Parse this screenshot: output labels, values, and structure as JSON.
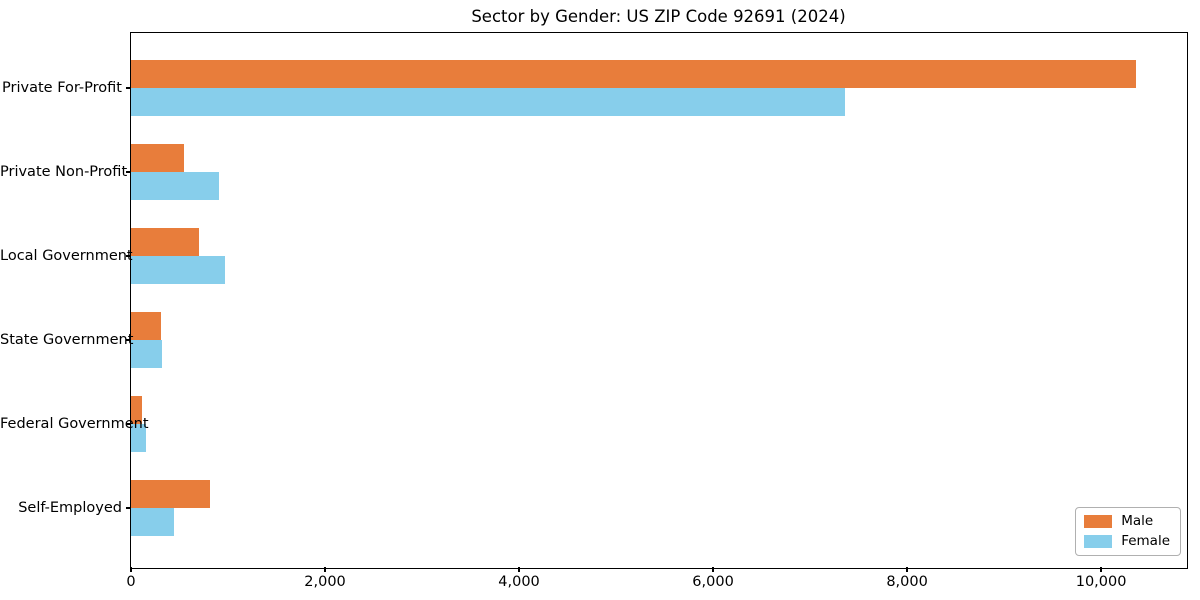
{
  "title": "Sector by Gender: US ZIP Code 92691 (2024)",
  "chart_data": {
    "type": "bar",
    "orientation": "horizontal",
    "title": "Sector by Gender: US ZIP Code 92691 (2024)",
    "categories": [
      "Private For-Profit",
      "Private Non-Profit",
      "Local Government",
      "State Government",
      "Federal Government",
      "Self-Employed"
    ],
    "series": [
      {
        "name": "Male",
        "color": "#e87d3b",
        "values": [
          10355,
          545,
          700,
          310,
          115,
          815
        ]
      },
      {
        "name": "Female",
        "color": "#87ceeb",
        "values": [
          7360,
          905,
          965,
          320,
          155,
          445
        ]
      }
    ],
    "xlim": [
      0,
      10875
    ],
    "xticks": [
      0,
      2000,
      4000,
      6000,
      8000,
      10000
    ],
    "xtick_labels": [
      "0",
      "2,000",
      "4,000",
      "6,000",
      "8,000",
      "10,000"
    ],
    "xlabel": "",
    "ylabel": "",
    "grid": false,
    "legend_position": "lower right",
    "legend_labels": [
      "Male",
      "Female"
    ]
  }
}
